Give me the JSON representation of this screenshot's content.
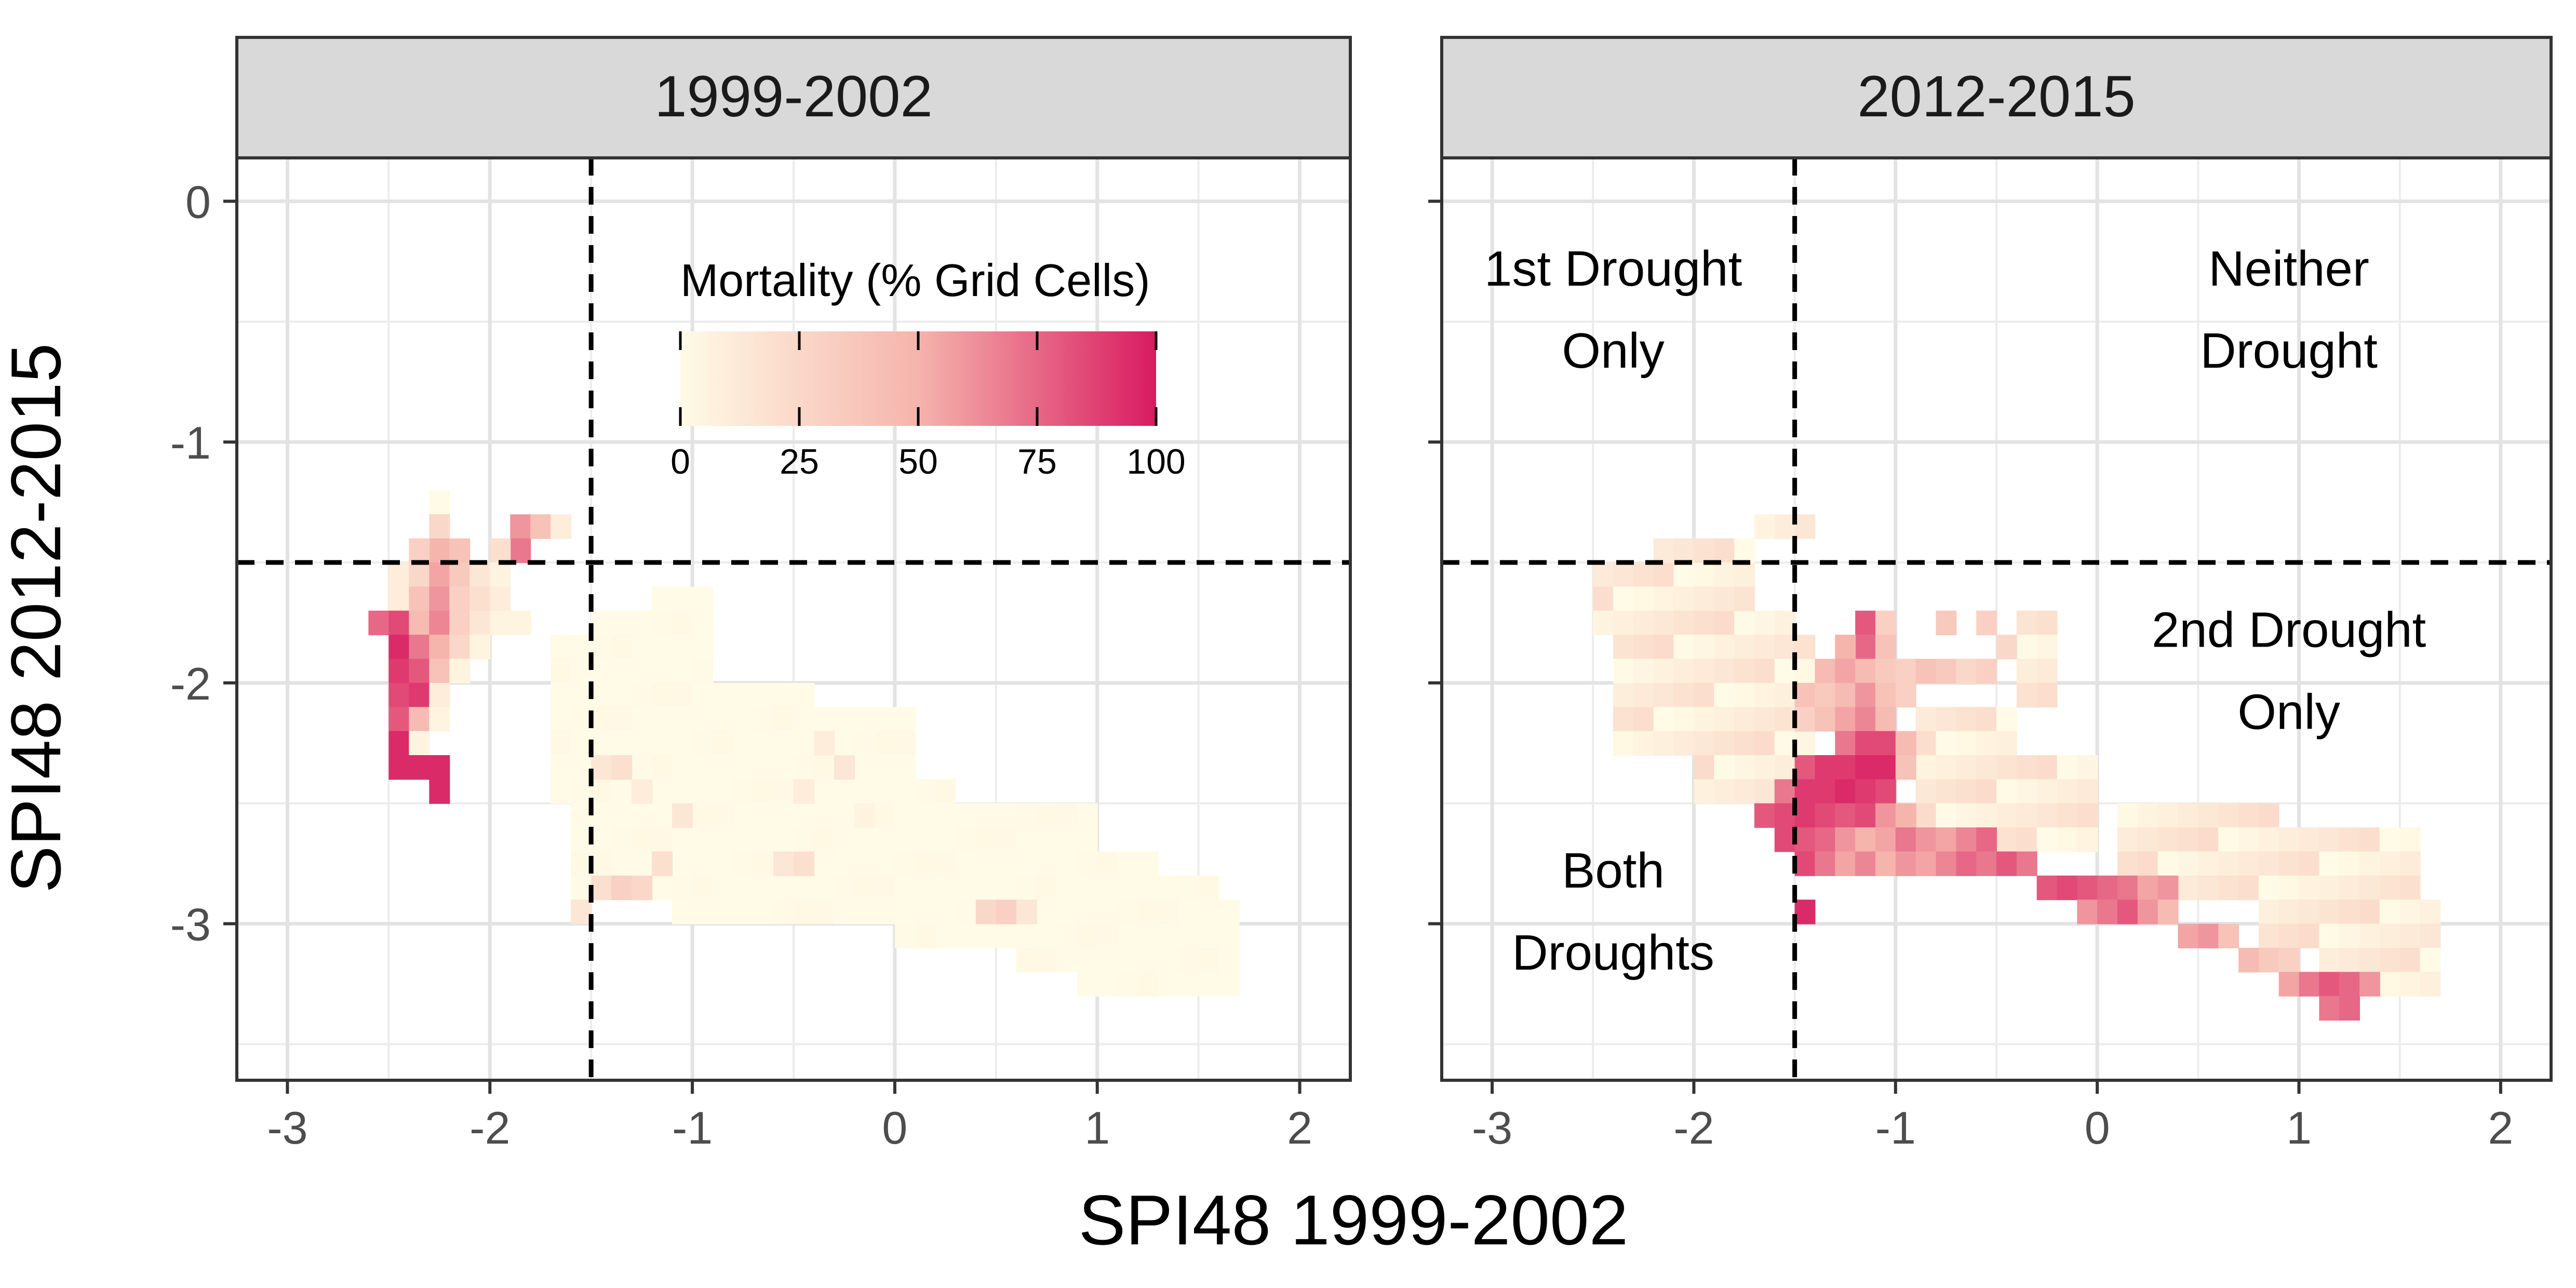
{
  "chart_data": {
    "type": "heatmap",
    "x_axis_label": "SPI48 1999-2002",
    "y_axis_label": "SPI48 2012-2015",
    "x_range": [
      -3.25,
      2.25
    ],
    "y_range": [
      -3.65,
      0.18
    ],
    "x_ticks": [
      -3,
      -2,
      -1,
      0,
      1,
      2
    ],
    "y_ticks": [
      0,
      -1,
      -2,
      -3
    ],
    "grid": true,
    "threshold_lines": {
      "x": -1.5,
      "y": -1.5,
      "style": "dashed"
    },
    "colorbar": {
      "title": "Mortality (% Grid Cells)",
      "min": 0,
      "max": 100,
      "ticks": [
        0,
        25,
        50,
        75,
        100
      ],
      "colors": [
        "#FFFBE6",
        "#F5B4AC",
        "#D81B60"
      ],
      "placement": "inside-top of first panel"
    },
    "panels": [
      {
        "title": "1999-2002",
        "annotations": [],
        "cells": [
          [
            -2.25,
            -1.25,
            0
          ],
          [
            -2.25,
            -1.35,
            25
          ],
          [
            -2.25,
            -1.45,
            50
          ],
          [
            -2.35,
            -1.45,
            30
          ],
          [
            -2.15,
            -1.45,
            40
          ],
          [
            -1.85,
            -1.35,
            60
          ],
          [
            -1.85,
            -1.45,
            70
          ],
          [
            -1.75,
            -1.35,
            40
          ],
          [
            -1.65,
            -1.35,
            10
          ],
          [
            -1.95,
            -1.45,
            20
          ],
          [
            -2.45,
            -1.55,
            10
          ],
          [
            -2.35,
            -1.55,
            25
          ],
          [
            -2.25,
            -1.55,
            55
          ],
          [
            -2.15,
            -1.55,
            35
          ],
          [
            -2.05,
            -1.55,
            15
          ],
          [
            -1.95,
            -1.55,
            5
          ],
          [
            -2.45,
            -1.65,
            10
          ],
          [
            -2.35,
            -1.65,
            40
          ],
          [
            -2.25,
            -1.65,
            60
          ],
          [
            -2.15,
            -1.65,
            30
          ],
          [
            -2.05,
            -1.65,
            20
          ],
          [
            -1.95,
            -1.65,
            10
          ],
          [
            -2.55,
            -1.75,
            75
          ],
          [
            -2.45,
            -1.75,
            85
          ],
          [
            -2.35,
            -1.75,
            45
          ],
          [
            -2.25,
            -1.75,
            65
          ],
          [
            -2.15,
            -1.75,
            30
          ],
          [
            -2.05,
            -1.75,
            15
          ],
          [
            -1.95,
            -1.75,
            5
          ],
          [
            -1.85,
            -1.75,
            5
          ],
          [
            -2.45,
            -1.85,
            95
          ],
          [
            -2.35,
            -1.85,
            70
          ],
          [
            -2.25,
            -1.85,
            50
          ],
          [
            -2.15,
            -1.85,
            25
          ],
          [
            -2.05,
            -1.85,
            5
          ],
          [
            -2.45,
            -1.95,
            90
          ],
          [
            -2.35,
            -1.95,
            80
          ],
          [
            -2.25,
            -1.95,
            40
          ],
          [
            -2.15,
            -1.95,
            5
          ],
          [
            -2.45,
            -2.05,
            85
          ],
          [
            -2.35,
            -2.05,
            90
          ],
          [
            -2.25,
            -2.05,
            10
          ],
          [
            -2.45,
            -2.15,
            80
          ],
          [
            -2.35,
            -2.15,
            45
          ],
          [
            -2.25,
            -2.15,
            5
          ],
          [
            -2.45,
            -2.25,
            95
          ],
          [
            -2.35,
            -2.25,
            5
          ],
          [
            -2.45,
            -2.35,
            95
          ],
          [
            -2.35,
            -2.35,
            95
          ],
          [
            -2.25,
            -2.35,
            95
          ],
          [
            -2.25,
            -2.45,
            95
          ],
          [
            -1.45,
            -2.35,
            15
          ],
          [
            -1.35,
            -2.35,
            20
          ],
          [
            -1.25,
            -2.45,
            10
          ],
          [
            -0.35,
            -2.25,
            10
          ],
          [
            -0.25,
            -2.35,
            15
          ],
          [
            -0.45,
            -2.45,
            10
          ],
          [
            -0.15,
            -2.55,
            5
          ],
          [
            -1.05,
            -2.55,
            15
          ],
          [
            -1.45,
            -2.85,
            20
          ],
          [
            -1.35,
            -2.85,
            30
          ],
          [
            -1.25,
            -2.85,
            25
          ],
          [
            -1.15,
            -2.75,
            20
          ],
          [
            -1.55,
            -2.95,
            15
          ],
          [
            -0.55,
            -2.75,
            15
          ],
          [
            -0.45,
            -2.75,
            20
          ],
          [
            0.45,
            -2.95,
            25
          ],
          [
            0.55,
            -2.95,
            30
          ],
          [
            0.65,
            -2.95,
            15
          ]
        ]
      },
      {
        "title": "2012-2015",
        "annotations": [
          {
            "lines": [
              "1st Drought",
              "Only"
            ]
          },
          {
            "lines": [
              "Neither",
              "Drought"
            ]
          },
          {
            "lines": [
              "2nd Drought",
              "Only"
            ]
          },
          {
            "lines": [
              "Both",
              "Droughts"
            ]
          }
        ],
        "cells": [
          [
            -1.55,
            -1.35,
            10
          ],
          [
            -1.65,
            -1.35,
            5
          ],
          [
            -1.45,
            -1.35,
            15
          ],
          [
            -1.15,
            -1.75,
            80
          ],
          [
            -1.05,
            -1.75,
            30
          ],
          [
            -1.15,
            -1.85,
            75
          ],
          [
            -1.25,
            -1.85,
            50
          ],
          [
            -1.05,
            -1.85,
            40
          ],
          [
            -0.75,
            -1.75,
            35
          ],
          [
            -0.55,
            -1.75,
            30
          ],
          [
            -0.45,
            -1.85,
            25
          ],
          [
            -1.35,
            -1.95,
            45
          ],
          [
            -1.25,
            -1.95,
            55
          ],
          [
            -1.15,
            -1.95,
            45
          ],
          [
            -1.05,
            -1.95,
            35
          ],
          [
            -0.95,
            -1.95,
            30
          ],
          [
            -0.85,
            -1.95,
            40
          ],
          [
            -0.75,
            -1.95,
            35
          ],
          [
            -0.65,
            -1.95,
            25
          ],
          [
            -0.55,
            -1.95,
            30
          ],
          [
            -1.45,
            -2.05,
            40
          ],
          [
            -1.35,
            -2.05,
            35
          ],
          [
            -1.25,
            -2.05,
            45
          ],
          [
            -1.15,
            -2.05,
            60
          ],
          [
            -1.05,
            -2.05,
            40
          ],
          [
            -0.95,
            -2.05,
            30
          ],
          [
            -1.45,
            -2.15,
            30
          ],
          [
            -1.35,
            -2.15,
            40
          ],
          [
            -1.25,
            -2.15,
            55
          ],
          [
            -1.15,
            -2.15,
            65
          ],
          [
            -1.05,
            -2.15,
            45
          ],
          [
            -1.25,
            -2.25,
            70
          ],
          [
            -1.15,
            -2.25,
            85
          ],
          [
            -1.05,
            -2.25,
            85
          ],
          [
            -0.95,
            -2.25,
            45
          ],
          [
            -1.45,
            -2.35,
            80
          ],
          [
            -1.35,
            -2.35,
            90
          ],
          [
            -1.25,
            -2.35,
            90
          ],
          [
            -1.15,
            -2.35,
            95
          ],
          [
            -1.05,
            -2.35,
            95
          ],
          [
            -0.95,
            -2.35,
            40
          ],
          [
            -1.55,
            -2.45,
            70
          ],
          [
            -1.45,
            -2.45,
            90
          ],
          [
            -1.35,
            -2.45,
            90
          ],
          [
            -1.25,
            -2.45,
            95
          ],
          [
            -1.15,
            -2.45,
            90
          ],
          [
            -1.05,
            -2.45,
            85
          ],
          [
            -1.65,
            -2.55,
            80
          ],
          [
            -1.55,
            -2.55,
            85
          ],
          [
            -1.45,
            -2.55,
            90
          ],
          [
            -1.35,
            -2.55,
            85
          ],
          [
            -1.25,
            -2.55,
            80
          ],
          [
            -1.15,
            -2.55,
            85
          ],
          [
            -1.05,
            -2.55,
            60
          ],
          [
            -0.95,
            -2.55,
            50
          ],
          [
            -1.55,
            -2.65,
            85
          ],
          [
            -1.45,
            -2.65,
            80
          ],
          [
            -1.35,
            -2.65,
            75
          ],
          [
            -1.25,
            -2.65,
            60
          ],
          [
            -1.15,
            -2.65,
            50
          ],
          [
            -1.05,
            -2.65,
            55
          ],
          [
            -0.95,
            -2.65,
            70
          ],
          [
            -0.85,
            -2.65,
            60
          ],
          [
            -0.75,
            -2.65,
            55
          ],
          [
            -0.65,
            -2.65,
            65
          ],
          [
            -0.55,
            -2.65,
            75
          ],
          [
            -1.45,
            -2.75,
            85
          ],
          [
            -1.35,
            -2.75,
            70
          ],
          [
            -1.25,
            -2.75,
            55
          ],
          [
            -1.15,
            -2.75,
            65
          ],
          [
            -1.05,
            -2.75,
            50
          ],
          [
            -0.95,
            -2.75,
            60
          ],
          [
            -0.85,
            -2.75,
            55
          ],
          [
            -0.75,
            -2.75,
            65
          ],
          [
            -0.65,
            -2.75,
            75
          ],
          [
            -0.55,
            -2.75,
            70
          ],
          [
            -0.45,
            -2.75,
            80
          ],
          [
            -0.35,
            -2.75,
            70
          ],
          [
            -0.25,
            -2.85,
            80
          ],
          [
            -0.15,
            -2.85,
            85
          ],
          [
            -0.05,
            -2.85,
            80
          ],
          [
            0.05,
            -2.85,
            75
          ],
          [
            0.15,
            -2.85,
            70
          ],
          [
            0.25,
            -2.85,
            55
          ],
          [
            0.35,
            -2.85,
            60
          ],
          [
            -1.45,
            -2.95,
            95
          ],
          [
            -0.05,
            -2.95,
            60
          ],
          [
            0.05,
            -2.95,
            70
          ],
          [
            0.15,
            -2.95,
            80
          ],
          [
            0.25,
            -2.95,
            60
          ],
          [
            0.35,
            -2.95,
            45
          ],
          [
            0.45,
            -3.05,
            55
          ],
          [
            0.55,
            -3.05,
            60
          ],
          [
            0.65,
            -3.05,
            40
          ],
          [
            0.75,
            -3.15,
            45
          ],
          [
            0.85,
            -3.15,
            35
          ],
          [
            0.95,
            -3.15,
            30
          ],
          [
            0.95,
            -3.25,
            55
          ],
          [
            1.05,
            -3.25,
            70
          ],
          [
            1.15,
            -3.25,
            80
          ],
          [
            1.25,
            -3.25,
            75
          ],
          [
            1.35,
            -3.25,
            60
          ],
          [
            1.15,
            -3.35,
            70
          ],
          [
            1.25,
            -3.35,
            75
          ]
        ]
      }
    ]
  }
}
